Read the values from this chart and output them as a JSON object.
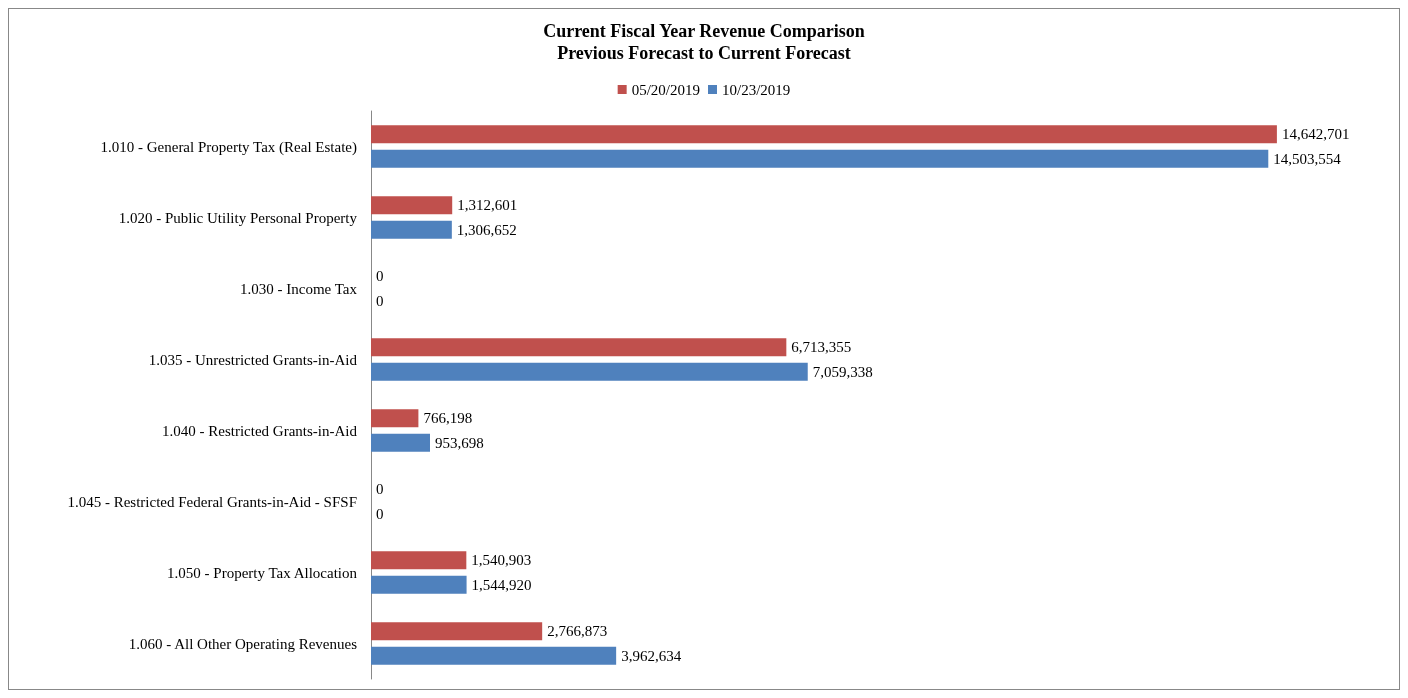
{
  "chart_data": {
    "type": "bar",
    "orientation": "horizontal",
    "title": "Current Fiscal Year Revenue Comparison",
    "subtitle": "Previous Forecast to Current Forecast",
    "categories": [
      "1.010 - General Property Tax (Real Estate)",
      "1.020 - Public Utility Personal Property",
      "1.030 - Income Tax",
      "1.035 - Unrestricted Grants-in-Aid",
      "1.040 - Restricted Grants-in-Aid",
      "1.045 - Restricted Federal Grants-in-Aid - SFSF",
      "1.050 - Property Tax Allocation",
      "1.060 - All Other Operating Revenues"
    ],
    "series": [
      {
        "name": "05/20/2019",
        "color": "#c0504d",
        "values": [
          14642701,
          1312601,
          0,
          6713355,
          766198,
          0,
          1540903,
          2766873
        ],
        "value_labels": [
          "14,642,701",
          "1,312,601",
          "0",
          "6,713,355",
          "766,198",
          "0",
          "1,540,903",
          "2,766,873"
        ]
      },
      {
        "name": "10/23/2019",
        "color": "#4f81bd",
        "values": [
          14503554,
          1306652,
          0,
          7059338,
          953698,
          0,
          1544920,
          3962634
        ],
        "value_labels": [
          "14,503,554",
          "1,306,652",
          "0",
          "7,059,338",
          "953,698",
          "0",
          "1,544,920",
          "3,962,634"
        ]
      }
    ],
    "legend": "top"
  }
}
